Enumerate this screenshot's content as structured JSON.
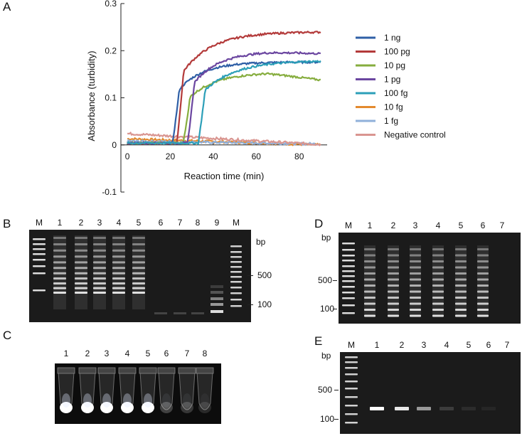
{
  "panels": {
    "a": "A",
    "b": "B",
    "c": "C",
    "d": "D",
    "e": "E"
  },
  "chart_data": {
    "type": "line",
    "xlabel": "Reaction time (min)",
    "ylabel": "Absorbance (turbidity)",
    "xlim": [
      -3,
      93
    ],
    "ylim": [
      -0.1,
      0.3
    ],
    "xticks": [
      0,
      20,
      40,
      60,
      80
    ],
    "yticks": [
      -0.1,
      0,
      0.1,
      0.2,
      0.3
    ],
    "ytick_labels": [
      "-0.1",
      "0",
      "0.1",
      "0.2",
      "0.3"
    ],
    "legend_position": "right",
    "series": [
      {
        "name": "1 ng",
        "color": "#2f5fa6",
        "onset": 21,
        "plateau": 0.172,
        "k": 0.09
      },
      {
        "name": "100 pg",
        "color": "#b33a3a",
        "onset": 23,
        "plateau": 0.236,
        "k": 0.075
      },
      {
        "name": "10 pg",
        "color": "#86ad3e",
        "onset": 26,
        "plateau": 0.15,
        "k": 0.08,
        "decline": 0.016
      },
      {
        "name": "1 pg",
        "color": "#6b46a0",
        "onset": 28,
        "plateau": 0.195,
        "k": 0.085,
        "decline": 0.005
      },
      {
        "name": "100 fg",
        "color": "#2c9fb8",
        "onset": 33,
        "plateau": 0.175,
        "k": 0.07
      },
      {
        "name": "10 fg",
        "color": "#e38a2e",
        "start": 0.013,
        "end": 0.0
      },
      {
        "name": "1 fg",
        "color": "#8fb0da",
        "start": 0.008,
        "end": 0.002
      },
      {
        "name": "Negative control",
        "color": "#d99590",
        "start": 0.024,
        "end": 0.001
      }
    ]
  },
  "gel_b": {
    "marker_label": "M",
    "lanes": [
      "M",
      "1",
      "2",
      "3",
      "4",
      "5",
      "6",
      "7",
      "8",
      "9",
      "M"
    ],
    "bp_unit": "bp",
    "bp_marks": [
      "500",
      "100"
    ]
  },
  "tubes_c": {
    "lanes": [
      "1",
      "2",
      "3",
      "4",
      "5",
      "6",
      "7",
      "8"
    ],
    "glow": [
      1,
      1,
      1,
      1,
      1,
      0.22,
      0.18,
      0.12
    ]
  },
  "gel_d": {
    "lanes": [
      "M",
      "1",
      "2",
      "3",
      "4",
      "5",
      "6",
      "7"
    ],
    "bp_unit": "bp",
    "bp_marks": [
      "500",
      "100"
    ]
  },
  "gel_e": {
    "lanes": [
      "M",
      "1",
      "2",
      "3",
      "4",
      "5",
      "6",
      "7"
    ],
    "bp_unit": "bp",
    "bp_marks": [
      "500",
      "100"
    ],
    "band_strength": [
      1,
      0.9,
      0.55,
      0.15,
      0.08,
      0.05,
      0
    ]
  }
}
